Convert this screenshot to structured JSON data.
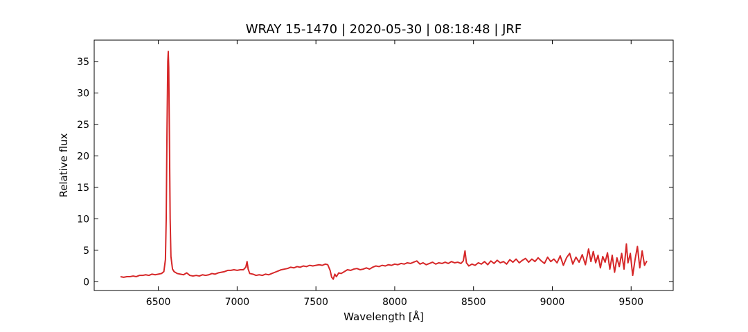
{
  "chart_data": {
    "type": "line",
    "title": "WRAY 15-1470 | 2020-05-30 | 08:18:48 | JRF",
    "xlabel": "Wavelength [Å]",
    "ylabel": "Relative flux",
    "color": "#d62728",
    "tick_direction": "in",
    "mirror_ticks": true,
    "grid": false,
    "xlim": [
      6093,
      9767
    ],
    "ylim": [
      -1.4,
      38.4
    ],
    "xticks": [
      6500,
      7000,
      7500,
      8000,
      8500,
      9000,
      9500
    ],
    "yticks": [
      0,
      5,
      10,
      15,
      20,
      25,
      30,
      35
    ],
    "x": [
      6260,
      6280,
      6300,
      6320,
      6340,
      6360,
      6380,
      6400,
      6420,
      6440,
      6460,
      6480,
      6500,
      6520,
      6535,
      6545,
      6550,
      6555,
      6560,
      6563,
      6566,
      6570,
      6575,
      6580,
      6590,
      6600,
      6620,
      6640,
      6660,
      6680,
      6700,
      6720,
      6740,
      6760,
      6780,
      6800,
      6820,
      6840,
      6860,
      6880,
      6900,
      6920,
      6940,
      6960,
      6980,
      7000,
      7020,
      7040,
      7055,
      7063,
      7070,
      7080,
      7100,
      7120,
      7140,
      7160,
      7180,
      7200,
      7220,
      7240,
      7260,
      7280,
      7300,
      7320,
      7340,
      7360,
      7380,
      7400,
      7420,
      7440,
      7460,
      7480,
      7500,
      7520,
      7540,
      7560,
      7575,
      7590,
      7600,
      7610,
      7620,
      7630,
      7645,
      7660,
      7680,
      7700,
      7720,
      7740,
      7760,
      7780,
      7800,
      7820,
      7840,
      7860,
      7880,
      7900,
      7920,
      7940,
      7960,
      7980,
      8000,
      8020,
      8040,
      8060,
      8080,
      8100,
      8120,
      8140,
      8160,
      8180,
      8200,
      8220,
      8240,
      8260,
      8280,
      8300,
      8320,
      8340,
      8360,
      8380,
      8400,
      8420,
      8435,
      8446,
      8455,
      8470,
      8490,
      8510,
      8530,
      8550,
      8570,
      8590,
      8610,
      8630,
      8650,
      8670,
      8690,
      8710,
      8730,
      8750,
      8770,
      8790,
      8810,
      8830,
      8850,
      8870,
      8890,
      8910,
      8930,
      8950,
      8970,
      8990,
      9010,
      9030,
      9050,
      9070,
      9090,
      9110,
      9130,
      9150,
      9170,
      9190,
      9210,
      9230,
      9245,
      9260,
      9275,
      9290,
      9305,
      9320,
      9335,
      9350,
      9365,
      9380,
      9395,
      9410,
      9425,
      9440,
      9455,
      9470,
      9480,
      9495,
      9510,
      9525,
      9540,
      9555,
      9570,
      9585,
      9600
    ],
    "values": [
      0.8,
      0.7,
      0.8,
      0.8,
      0.9,
      0.8,
      1.0,
      1.0,
      1.1,
      1.0,
      1.2,
      1.1,
      1.2,
      1.3,
      1.6,
      3.5,
      10,
      24,
      35,
      36.6,
      34,
      24,
      10,
      4,
      2,
      1.6,
      1.3,
      1.2,
      1.1,
      1.4,
      1.0,
      0.9,
      1.0,
      0.9,
      1.1,
      1.0,
      1.1,
      1.3,
      1.2,
      1.4,
      1.5,
      1.6,
      1.8,
      1.8,
      1.9,
      1.8,
      1.9,
      1.9,
      2.3,
      3.2,
      2.0,
      1.3,
      1.2,
      1.0,
      1.1,
      1.0,
      1.2,
      1.1,
      1.3,
      1.5,
      1.7,
      1.9,
      2.0,
      2.1,
      2.3,
      2.2,
      2.4,
      2.3,
      2.5,
      2.4,
      2.6,
      2.5,
      2.6,
      2.7,
      2.6,
      2.8,
      2.7,
      1.8,
      0.7,
      0.4,
      1.2,
      0.8,
      1.4,
      1.3,
      1.6,
      1.9,
      1.8,
      2.0,
      2.1,
      1.9,
      2.0,
      2.2,
      2.0,
      2.3,
      2.5,
      2.4,
      2.6,
      2.5,
      2.7,
      2.6,
      2.8,
      2.7,
      2.9,
      2.8,
      3.0,
      2.9,
      3.1,
      3.3,
      2.8,
      3.0,
      2.7,
      2.9,
      3.1,
      2.8,
      3.0,
      2.9,
      3.1,
      2.9,
      3.2,
      3.0,
      3.1,
      2.9,
      3.3,
      4.9,
      3.0,
      2.5,
      2.8,
      2.6,
      3.0,
      2.8,
      3.2,
      2.7,
      3.3,
      2.9,
      3.4,
      3.0,
      3.2,
      2.8,
      3.5,
      3.1,
      3.6,
      3.0,
      3.4,
      3.7,
      3.1,
      3.6,
      3.2,
      3.8,
      3.3,
      2.9,
      3.9,
      3.2,
      3.6,
      3.0,
      4.1,
      2.6,
      3.8,
      4.5,
      2.8,
      3.9,
      3.1,
      4.3,
      2.7,
      5.2,
      3.2,
      4.8,
      3.0,
      4.2,
      2.2,
      4.0,
      3.1,
      4.6,
      2.0,
      4.2,
      1.5,
      3.8,
      2.4,
      4.5,
      2.0,
      6.0,
      3.0,
      4.5,
      1.0,
      3.5,
      5.6,
      2.2,
      4.9,
      2.6,
      3.3
    ]
  }
}
